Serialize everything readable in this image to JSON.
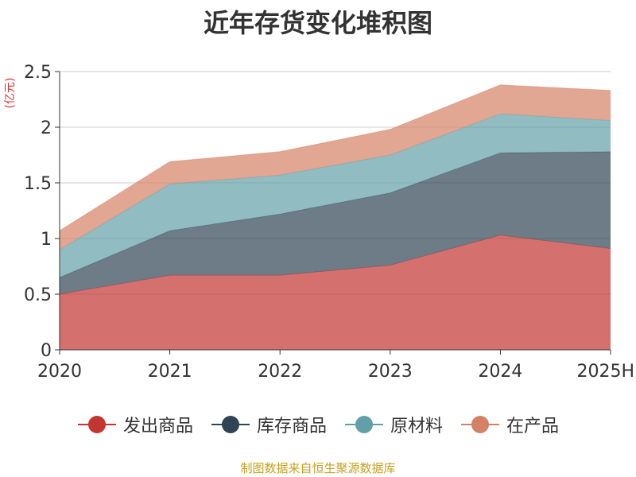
{
  "chart_data": {
    "type": "area",
    "stacked": true,
    "title": "近年存货变化堆积图",
    "unit_label": "(亿元)",
    "categories": [
      "2020",
      "2021",
      "2022",
      "2023",
      "2024",
      "2025H"
    ],
    "y_ticks": [
      "0",
      "0.5",
      "1",
      "1.5",
      "2",
      "2.5"
    ],
    "ylim": [
      0,
      2.5
    ],
    "grid": true,
    "legend_position": "bottom",
    "series": [
      {
        "name": "发出商品",
        "color": "#c23531",
        "values": [
          0.5,
          0.67,
          0.67,
          0.76,
          1.03,
          0.91
        ]
      },
      {
        "name": "库存商品",
        "color": "#2f4554",
        "values": [
          0.15,
          0.4,
          0.55,
          0.65,
          0.74,
          0.87
        ]
      },
      {
        "name": "原材料",
        "color": "#61a0a8",
        "values": [
          0.25,
          0.42,
          0.35,
          0.34,
          0.35,
          0.28
        ]
      },
      {
        "name": "在产品",
        "color": "#d48265",
        "values": [
          0.17,
          0.2,
          0.21,
          0.23,
          0.26,
          0.27
        ]
      }
    ]
  },
  "source": "制图数据来自恒生聚源数据库"
}
